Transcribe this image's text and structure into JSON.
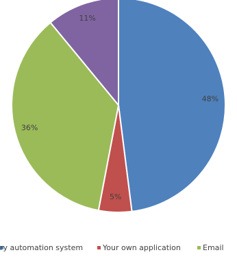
{
  "chart_data": {
    "type": "pie",
    "categories": [
      "ry automation system",
      "Your own application",
      "Email",
      null
    ],
    "values": [
      48,
      5,
      36,
      11
    ],
    "value_labels": [
      "48%",
      "5%",
      "36%",
      "11%"
    ],
    "colors": [
      "#4f81bd",
      "#c0504d",
      "#9bbb59",
      "#8064a2"
    ],
    "legend": "bottom"
  }
}
